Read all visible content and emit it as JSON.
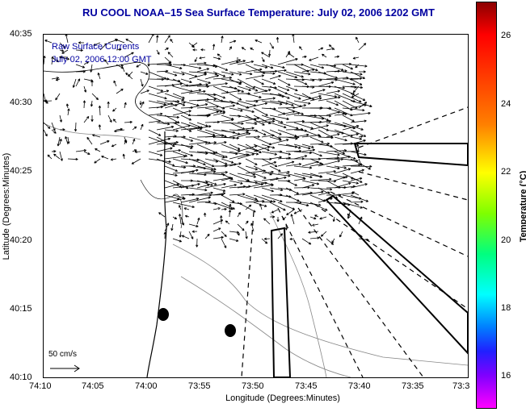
{
  "title": "RU COOL  NOAA–15  Sea Surface Temperature:  July 02, 2006 1202 GMT",
  "legend": {
    "line1": "Raw Surface Currents",
    "line2": "July 02, 2006 12:00 GMT"
  },
  "axes": {
    "xlabel": "Longitude (Degrees:Minutes)",
    "ylabel": "Latitude (Degrees:Minutes)",
    "xticks": [
      "74:10",
      "74:05",
      "74:00",
      "73:55",
      "73:50",
      "73:45",
      "73:40",
      "73:35",
      "73:3"
    ],
    "yticks": [
      "40:35",
      "40:30",
      "40:25",
      "40:20",
      "40:15",
      "40:10"
    ]
  },
  "colorbar": {
    "label": "Temperature (°C)",
    "ticks": [
      "26",
      "24",
      "22",
      "20",
      "18",
      "16"
    ]
  },
  "scale": {
    "label": "50 cm/s"
  },
  "colors": {
    "title": "#0000a0",
    "legend": "#0000a0"
  }
}
